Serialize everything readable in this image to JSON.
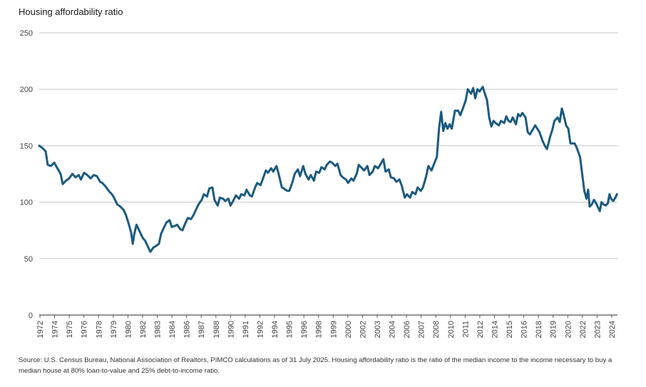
{
  "chart_data": {
    "type": "line",
    "title": "Housing affordability ratio",
    "xlabel": "",
    "ylabel": "",
    "ylim": [
      0,
      250
    ],
    "yticks": [
      0,
      50,
      100,
      150,
      200,
      250
    ],
    "xticks": [
      "1972",
      "1974",
      "1975",
      "1976",
      "1978",
      "1979",
      "1980",
      "1982",
      "1983",
      "1984",
      "1986",
      "1987",
      "1988",
      "1990",
      "1991",
      "1992",
      "1994",
      "1995",
      "1996",
      "1998",
      "1999",
      "2000",
      "2002",
      "2003",
      "2004",
      "2006",
      "2007",
      "2008",
      "2010",
      "2011",
      "2012",
      "2014",
      "2015",
      "2016",
      "2018",
      "2019",
      "2020",
      "2022",
      "2023",
      "2024"
    ],
    "grid": "horizontal",
    "color": "#1b5a80",
    "series": [
      {
        "name": "",
        "points": [
          [
            1972.0,
            150
          ],
          [
            1972.3,
            148
          ],
          [
            1972.6,
            145
          ],
          [
            1972.8,
            133
          ],
          [
            1973.1,
            132
          ],
          [
            1973.4,
            135
          ],
          [
            1973.7,
            130
          ],
          [
            1974.0,
            125
          ],
          [
            1974.2,
            116
          ],
          [
            1974.5,
            119
          ],
          [
            1974.8,
            121
          ],
          [
            1975.1,
            125
          ],
          [
            1975.4,
            122
          ],
          [
            1975.7,
            124
          ],
          [
            1975.9,
            120
          ],
          [
            1976.2,
            126
          ],
          [
            1976.5,
            124
          ],
          [
            1976.8,
            121
          ],
          [
            1977.1,
            124
          ],
          [
            1977.4,
            123
          ],
          [
            1977.7,
            118
          ],
          [
            1977.9,
            117
          ],
          [
            1978.2,
            114
          ],
          [
            1978.5,
            110
          ],
          [
            1978.8,
            107
          ],
          [
            1979.0,
            104
          ],
          [
            1979.3,
            98
          ],
          [
            1979.6,
            96
          ],
          [
            1979.9,
            93
          ],
          [
            1980.1,
            89
          ],
          [
            1980.4,
            80
          ],
          [
            1980.6,
            73
          ],
          [
            1980.75,
            63
          ],
          [
            1980.9,
            72
          ],
          [
            1981.1,
            80
          ],
          [
            1981.4,
            74
          ],
          [
            1981.7,
            68
          ],
          [
            1981.9,
            66
          ],
          [
            1982.2,
            60
          ],
          [
            1982.4,
            56
          ],
          [
            1982.7,
            60
          ],
          [
            1982.9,
            61
          ],
          [
            1983.2,
            63
          ],
          [
            1983.4,
            72
          ],
          [
            1983.7,
            78
          ],
          [
            1983.9,
            82
          ],
          [
            1984.2,
            84
          ],
          [
            1984.4,
            78
          ],
          [
            1984.7,
            79
          ],
          [
            1984.9,
            80
          ],
          [
            1985.2,
            76
          ],
          [
            1985.4,
            75
          ],
          [
            1985.7,
            82
          ],
          [
            1985.9,
            86
          ],
          [
            1986.2,
            85
          ],
          [
            1986.4,
            88
          ],
          [
            1986.7,
            94
          ],
          [
            1986.9,
            98
          ],
          [
            1987.2,
            102
          ],
          [
            1987.4,
            107
          ],
          [
            1987.7,
            105
          ],
          [
            1987.9,
            112
          ],
          [
            1988.2,
            113
          ],
          [
            1988.4,
            102
          ],
          [
            1988.7,
            97
          ],
          [
            1988.9,
            104
          ],
          [
            1989.2,
            103
          ],
          [
            1989.4,
            101
          ],
          [
            1989.7,
            103
          ],
          [
            1989.9,
            97
          ],
          [
            1990.2,
            102
          ],
          [
            1990.4,
            106
          ],
          [
            1990.7,
            103
          ],
          [
            1990.9,
            107
          ],
          [
            1991.2,
            106
          ],
          [
            1991.4,
            111
          ],
          [
            1991.7,
            106
          ],
          [
            1991.9,
            105
          ],
          [
            1992.2,
            113
          ],
          [
            1992.4,
            117
          ],
          [
            1992.7,
            115
          ],
          [
            1992.9,
            120
          ],
          [
            1993.2,
            128
          ],
          [
            1993.4,
            126
          ],
          [
            1993.7,
            130
          ],
          [
            1993.9,
            127
          ],
          [
            1994.2,
            132
          ],
          [
            1994.4,
            125
          ],
          [
            1994.7,
            113
          ],
          [
            1994.9,
            112
          ],
          [
            1995.2,
            110
          ],
          [
            1995.4,
            110
          ],
          [
            1995.7,
            118
          ],
          [
            1995.9,
            125
          ],
          [
            1996.2,
            129
          ],
          [
            1996.4,
            123
          ],
          [
            1996.7,
            132
          ],
          [
            1996.9,
            125
          ],
          [
            1997.2,
            120
          ],
          [
            1997.4,
            124
          ],
          [
            1997.7,
            119
          ],
          [
            1997.9,
            127
          ],
          [
            1998.2,
            126
          ],
          [
            1998.4,
            131
          ],
          [
            1998.7,
            129
          ],
          [
            1998.9,
            133
          ],
          [
            1999.2,
            136
          ],
          [
            1999.4,
            135
          ],
          [
            1999.7,
            132
          ],
          [
            1999.9,
            134
          ],
          [
            2000.2,
            124
          ],
          [
            2000.4,
            122
          ],
          [
            2000.7,
            120
          ],
          [
            2000.9,
            117
          ],
          [
            2001.2,
            121
          ],
          [
            2001.4,
            119
          ],
          [
            2001.7,
            125
          ],
          [
            2001.9,
            133
          ],
          [
            2002.2,
            130
          ],
          [
            2002.4,
            128
          ],
          [
            2002.7,
            132
          ],
          [
            2002.9,
            124
          ],
          [
            2003.2,
            127
          ],
          [
            2003.4,
            132
          ],
          [
            2003.7,
            130
          ],
          [
            2003.9,
            133
          ],
          [
            2004.2,
            138
          ],
          [
            2004.4,
            127
          ],
          [
            2004.7,
            129
          ],
          [
            2004.9,
            122
          ],
          [
            2005.2,
            121
          ],
          [
            2005.4,
            118
          ],
          [
            2005.7,
            120
          ],
          [
            2005.9,
            115
          ],
          [
            2006.2,
            104
          ],
          [
            2006.4,
            107
          ],
          [
            2006.7,
            104
          ],
          [
            2006.9,
            109
          ],
          [
            2007.2,
            107
          ],
          [
            2007.4,
            113
          ],
          [
            2007.7,
            110
          ],
          [
            2007.9,
            113
          ],
          [
            2008.2,
            123
          ],
          [
            2008.4,
            132
          ],
          [
            2008.7,
            128
          ],
          [
            2008.9,
            133
          ],
          [
            2009.2,
            140
          ],
          [
            2009.4,
            165
          ],
          [
            2009.6,
            180
          ],
          [
            2009.8,
            163
          ],
          [
            2010.0,
            170
          ],
          [
            2010.2,
            165
          ],
          [
            2010.4,
            169
          ],
          [
            2010.6,
            165
          ],
          [
            2010.9,
            181
          ],
          [
            2011.2,
            181
          ],
          [
            2011.4,
            177
          ],
          [
            2011.6,
            182
          ],
          [
            2011.9,
            190
          ],
          [
            2012.1,
            200
          ],
          [
            2012.4,
            196
          ],
          [
            2012.6,
            201
          ],
          [
            2012.8,
            192
          ],
          [
            2013.0,
            200
          ],
          [
            2013.2,
            198
          ],
          [
            2013.5,
            202
          ],
          [
            2013.7,
            196
          ],
          [
            2013.9,
            190
          ],
          [
            2014.1,
            175
          ],
          [
            2014.3,
            167
          ],
          [
            2014.5,
            172
          ],
          [
            2014.7,
            170
          ],
          [
            2015.0,
            168
          ],
          [
            2015.2,
            172
          ],
          [
            2015.5,
            170
          ],
          [
            2015.7,
            176
          ],
          [
            2015.9,
            172
          ],
          [
            2016.1,
            171
          ],
          [
            2016.3,
            175
          ],
          [
            2016.6,
            169
          ],
          [
            2016.8,
            178
          ],
          [
            2017.0,
            176
          ],
          [
            2017.2,
            179
          ],
          [
            2017.5,
            175
          ],
          [
            2017.7,
            162
          ],
          [
            2017.9,
            160
          ],
          [
            2018.1,
            163
          ],
          [
            2018.4,
            168
          ],
          [
            2018.6,
            165
          ],
          [
            2018.8,
            162
          ],
          [
            2019.1,
            154
          ],
          [
            2019.3,
            150
          ],
          [
            2019.5,
            147
          ],
          [
            2019.8,
            158
          ],
          [
            2020.0,
            164
          ],
          [
            2020.2,
            172
          ],
          [
            2020.5,
            175
          ],
          [
            2020.7,
            171
          ],
          [
            2020.9,
            183
          ],
          [
            2021.1,
            176
          ],
          [
            2021.3,
            168
          ],
          [
            2021.5,
            165
          ],
          [
            2021.7,
            152
          ],
          [
            2021.9,
            152
          ],
          [
            2022.1,
            152
          ],
          [
            2022.3,
            148
          ],
          [
            2022.6,
            140
          ],
          [
            2022.8,
            125
          ],
          [
            2023.0,
            110
          ],
          [
            2023.2,
            103
          ],
          [
            2023.35,
            111
          ],
          [
            2023.5,
            96
          ],
          [
            2023.7,
            98
          ],
          [
            2023.9,
            102
          ],
          [
            2024.1,
            99
          ],
          [
            2024.3,
            95
          ],
          [
            2024.45,
            92
          ],
          [
            2024.6,
            100
          ],
          [
            2024.8,
            98
          ],
          [
            2025.0,
            97
          ],
          [
            2025.2,
            99
          ],
          [
            2025.35,
            107
          ],
          [
            2025.5,
            103
          ],
          [
            2025.7,
            101
          ],
          [
            2025.9,
            104
          ],
          [
            2026.05,
            107
          ]
        ]
      }
    ]
  },
  "source_note": "Source: U.S. Census Bureau, National Association of Realtors, PIMCO calculations as of 31 July 2025. Housing affordability ratio is the ratio of the median income to the income necessary to buy a median house at 80% loan-to-value and 25% debt-to-income ratio."
}
